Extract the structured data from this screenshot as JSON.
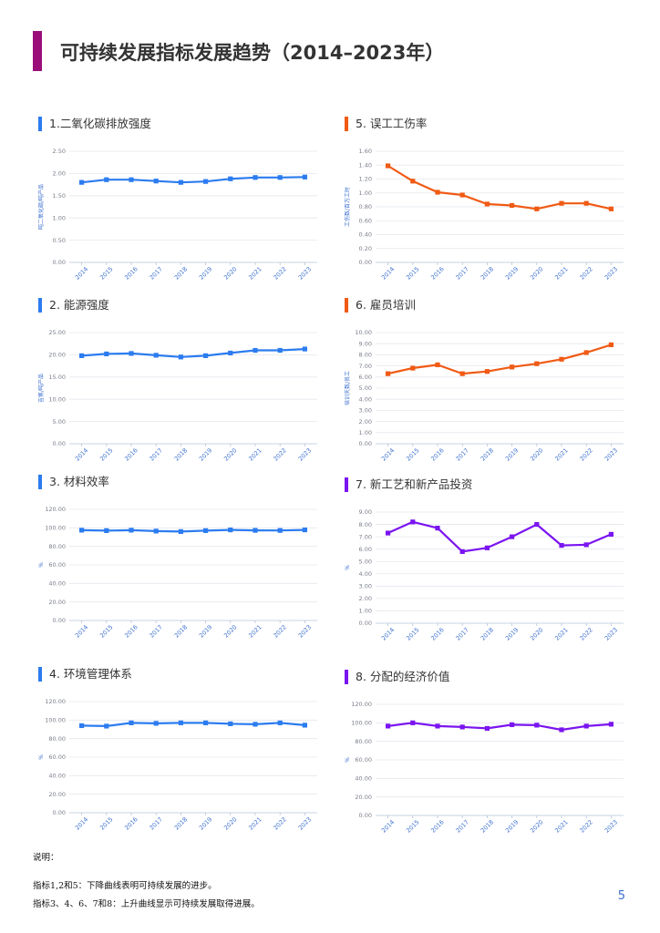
{
  "page": {
    "title": "可持续发展指标发展趋势（2014–2023年）",
    "accent_color": "#9b0e7a",
    "page_number": "5"
  },
  "notes": {
    "heading": "说明：",
    "line1": "指标1,2和5：下降曲线表明可持续发展的进步。",
    "line2": "指标3、4、6、7和8：上升曲线显示可持续发展取得进展。"
  },
  "chart_data": [
    {
      "id": "c1",
      "type": "line",
      "title": "1.二氧化碳排放强度",
      "ylabel": "吨二氧化碳/吨产品",
      "color": "#2c7cf0",
      "categories": [
        "2014",
        "2015",
        "2016",
        "2017",
        "2018",
        "2019",
        "2020",
        "2021",
        "2022",
        "2023"
      ],
      "values": [
        1.8,
        1.86,
        1.86,
        1.83,
        1.8,
        1.82,
        1.88,
        1.91,
        1.91,
        1.92
      ],
      "ylim": [
        0,
        2.5
      ],
      "yticks": [
        "0.00",
        "0.50",
        "1.00",
        "1.50",
        "2.00",
        "2.50"
      ]
    },
    {
      "id": "c2",
      "type": "line",
      "title": "2. 能源强度",
      "ylabel": "吉焦/吨产品",
      "color": "#2c7cf0",
      "categories": [
        "2014",
        "2015",
        "2016",
        "2017",
        "2018",
        "2019",
        "2020",
        "2021",
        "2022",
        "2023"
      ],
      "values": [
        19.8,
        20.2,
        20.3,
        19.9,
        19.5,
        19.8,
        20.4,
        21.0,
        21.0,
        21.3
      ],
      "ylim": [
        0,
        25
      ],
      "yticks": [
        "0.00",
        "5.00",
        "10.00",
        "15.00",
        "20.00",
        "25.00"
      ]
    },
    {
      "id": "c3",
      "type": "line",
      "title": "3. 材料效率",
      "ylabel": "%",
      "color": "#2c7cf0",
      "categories": [
        "2014",
        "2015",
        "2016",
        "2017",
        "2018",
        "2019",
        "2020",
        "2021",
        "2022",
        "2023"
      ],
      "values": [
        97.5,
        97.0,
        97.5,
        96.5,
        96.0,
        97.0,
        97.8,
        97.3,
        97.2,
        97.8
      ],
      "ylim": [
        0,
        120
      ],
      "yticks": [
        "0.00",
        "20.00",
        "40.00",
        "60.00",
        "80.00",
        "100.00",
        "120.00"
      ]
    },
    {
      "id": "c4",
      "type": "line",
      "title": "4. 环境管理体系",
      "ylabel": "%",
      "color": "#2c7cf0",
      "categories": [
        "2014",
        "2015",
        "2016",
        "2017",
        "2018",
        "2019",
        "2020",
        "2021",
        "2022",
        "2023"
      ],
      "values": [
        94.0,
        93.5,
        97.0,
        96.5,
        97.0,
        97.0,
        96.0,
        95.5,
        97.0,
        94.5
      ],
      "ylim": [
        0,
        120
      ],
      "yticks": [
        "0.00",
        "20.00",
        "40.00",
        "60.00",
        "80.00",
        "100.00",
        "120.00"
      ]
    },
    {
      "id": "c5",
      "type": "line",
      "title": "5. 误工工伤率",
      "ylabel": "工伤数/百万工时",
      "color": "#f05a14",
      "categories": [
        "2014",
        "2015",
        "2016",
        "2017",
        "2018",
        "2019",
        "2020",
        "2021",
        "2022",
        "2023"
      ],
      "values": [
        1.39,
        1.17,
        1.01,
        0.97,
        0.84,
        0.82,
        0.77,
        0.85,
        0.85,
        0.77
      ],
      "ylim": [
        0,
        1.6
      ],
      "yticks": [
        "0.00",
        "0.20",
        "0.40",
        "0.60",
        "0.80",
        "1.00",
        "1.20",
        "1.40",
        "1.60"
      ]
    },
    {
      "id": "c6",
      "type": "line",
      "title": "6. 雇员培训",
      "ylabel": "培训天数/员工",
      "color": "#f05a14",
      "categories": [
        "2014",
        "2015",
        "2016",
        "2017",
        "2018",
        "2019",
        "2020",
        "2021",
        "2022",
        "2023"
      ],
      "values": [
        6.3,
        6.8,
        7.1,
        6.3,
        6.5,
        6.9,
        7.2,
        7.6,
        8.2,
        8.9
      ],
      "ylim": [
        0,
        10
      ],
      "yticks": [
        "0.00",
        "1.00",
        "2.00",
        "3.00",
        "4.00",
        "5.00",
        "6.00",
        "7.00",
        "8.00",
        "9.00",
        "10.00"
      ]
    },
    {
      "id": "c7",
      "type": "line",
      "title": "7. 新工艺和新产品投资",
      "ylabel": "%",
      "color": "#7a14f0",
      "categories": [
        "2014",
        "2015",
        "2016",
        "2017",
        "2018",
        "2019",
        "2020",
        "2021",
        "2022",
        "2023"
      ],
      "values": [
        7.3,
        8.2,
        7.7,
        5.8,
        6.1,
        7.0,
        8.0,
        6.3,
        6.35,
        7.2
      ],
      "ylim": [
        0,
        9
      ],
      "yticks": [
        "0.00",
        "1.00",
        "2.00",
        "3.00",
        "4.00",
        "5.00",
        "6.00",
        "7.00",
        "8.00",
        "9.00"
      ]
    },
    {
      "id": "c8",
      "type": "line",
      "title": "8. 分配的经济价值",
      "ylabel": "%",
      "color": "#7a14f0",
      "categories": [
        "2014",
        "2015",
        "2016",
        "2017",
        "2018",
        "2019",
        "2020",
        "2021",
        "2022",
        "2023"
      ],
      "values": [
        96.5,
        100.0,
        96.5,
        95.5,
        94.0,
        98.0,
        97.5,
        92.5,
        96.5,
        98.5
      ],
      "ylim": [
        0,
        120
      ],
      "yticks": [
        "0.00",
        "20.00",
        "40.00",
        "60.00",
        "80.00",
        "100.00",
        "120.00"
      ]
    }
  ]
}
